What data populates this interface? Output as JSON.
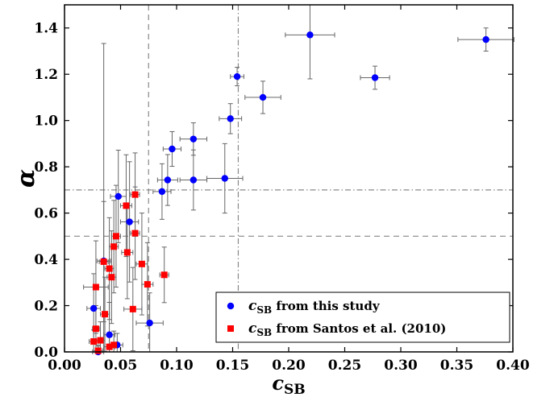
{
  "chart_data": {
    "type": "scatter",
    "title": "",
    "xlabel": "c",
    "xlabel_sub": "SB",
    "ylabel": "α",
    "xlim": [
      0.0,
      0.4
    ],
    "ylim": [
      0.0,
      1.5
    ],
    "xticks": [
      0.0,
      0.05,
      0.1,
      0.15,
      0.2,
      0.25,
      0.3,
      0.35,
      0.4
    ],
    "xtick_labels": [
      "0.00",
      "0.05",
      "0.10",
      "0.15",
      "0.20",
      "0.25",
      "0.30",
      "0.35",
      "0.40"
    ],
    "yticks": [
      0.0,
      0.2,
      0.4,
      0.6,
      0.8,
      1.0,
      1.2,
      1.4
    ],
    "ytick_labels": [
      "0.0",
      "0.2",
      "0.4",
      "0.6",
      "0.8",
      "1.0",
      "1.2",
      "1.4"
    ],
    "grid": false,
    "legend_position": "bottom-right",
    "reference_lines": {
      "vertical": [
        {
          "x": 0.075,
          "style": "dashed"
        },
        {
          "x": 0.155,
          "style": "dashdot"
        }
      ],
      "horizontal": [
        {
          "y": 0.5,
          "style": "dashed"
        },
        {
          "y": 0.7,
          "style": "dashdot"
        }
      ]
    },
    "series": [
      {
        "name_main": "c",
        "name_sub": "SB",
        "name_rest": " from this study",
        "color": "#0000ff",
        "marker": "circle",
        "points": [
          {
            "x": 0.376,
            "y": 1.35,
            "xerr": 0.025,
            "yerr": 0.05
          },
          {
            "x": 0.219,
            "y": 1.37,
            "xerr": 0.022,
            "yerr": 0.19
          },
          {
            "x": 0.277,
            "y": 1.185,
            "xerr": 0.013,
            "yerr": 0.05
          },
          {
            "x": 0.154,
            "y": 1.19,
            "xerr": 0.006,
            "yerr": 0.04
          },
          {
            "x": 0.177,
            "y": 1.1,
            "xerr": 0.016,
            "yerr": 0.07
          },
          {
            "x": 0.148,
            "y": 1.008,
            "xerr": 0.01,
            "yerr": 0.065
          },
          {
            "x": 0.115,
            "y": 0.92,
            "xerr": 0.012,
            "yerr": 0.07
          },
          {
            "x": 0.096,
            "y": 0.877,
            "xerr": 0.008,
            "yerr": 0.075
          },
          {
            "x": 0.143,
            "y": 0.75,
            "xerr": 0.016,
            "yerr": 0.15
          },
          {
            "x": 0.115,
            "y": 0.743,
            "xerr": 0.012,
            "yerr": 0.13
          },
          {
            "x": 0.092,
            "y": 0.743,
            "xerr": 0.009,
            "yerr": 0.11
          },
          {
            "x": 0.087,
            "y": 0.693,
            "xerr": 0.008,
            "yerr": 0.12
          },
          {
            "x": 0.048,
            "y": 0.672,
            "xerr": 0.007,
            "yerr": 0.2
          },
          {
            "x": 0.058,
            "y": 0.562,
            "xerr": 0.008,
            "yerr": 0.26
          },
          {
            "x": 0.035,
            "y": 0.393,
            "xerr": 0.006,
            "yerr": 0.94
          },
          {
            "x": 0.026,
            "y": 0.188,
            "xerr": 0.006,
            "yerr": 0.15
          },
          {
            "x": 0.076,
            "y": 0.125,
            "xerr": 0.012,
            "yerr": 0.13
          },
          {
            "x": 0.04,
            "y": 0.074,
            "xerr": 0.005,
            "yerr": 0.14
          },
          {
            "x": 0.047,
            "y": 0.03,
            "xerr": 0.005,
            "yerr": 0.05
          },
          {
            "x": 0.03,
            "y": 0.0,
            "xerr": 0.005,
            "yerr": 0.03
          }
        ]
      },
      {
        "name_main": "c",
        "name_sub": "SB",
        "name_rest": " from Santos et al. (2010)",
        "color": "#ff0000",
        "marker": "square",
        "points": [
          {
            "x": 0.063,
            "y": 0.68,
            "xerr": 0.004,
            "yerr": 0.18
          },
          {
            "x": 0.055,
            "y": 0.632,
            "xerr": 0.005,
            "yerr": 0.22
          },
          {
            "x": 0.063,
            "y": 0.513,
            "xerr": 0.004,
            "yerr": 0.2
          },
          {
            "x": 0.046,
            "y": 0.5,
            "xerr": 0.004,
            "yerr": 0.22
          },
          {
            "x": 0.044,
            "y": 0.455,
            "xerr": 0.004,
            "yerr": 0.2
          },
          {
            "x": 0.056,
            "y": 0.43,
            "xerr": 0.005,
            "yerr": 0.2
          },
          {
            "x": 0.035,
            "y": 0.39,
            "xerr": 0.004,
            "yerr": 0.26
          },
          {
            "x": 0.069,
            "y": 0.38,
            "xerr": 0.005,
            "yerr": 0.22
          },
          {
            "x": 0.04,
            "y": 0.36,
            "xerr": 0.004,
            "yerr": 0.22
          },
          {
            "x": 0.042,
            "y": 0.323,
            "xerr": 0.004,
            "yerr": 0.2
          },
          {
            "x": 0.089,
            "y": 0.333,
            "xerr": 0.004,
            "yerr": 0.12
          },
          {
            "x": 0.074,
            "y": 0.292,
            "xerr": 0.005,
            "yerr": 0.18
          },
          {
            "x": 0.028,
            "y": 0.28,
            "xerr": 0.011,
            "yerr": 0.2
          },
          {
            "x": 0.061,
            "y": 0.185,
            "xerr": 0.008,
            "yerr": 0.18
          },
          {
            "x": 0.036,
            "y": 0.163,
            "xerr": 0.004,
            "yerr": 0.16
          },
          {
            "x": 0.028,
            "y": 0.1,
            "xerr": 0.003,
            "yerr": 0.1
          },
          {
            "x": 0.032,
            "y": 0.05,
            "xerr": 0.004,
            "yerr": 0.08
          },
          {
            "x": 0.044,
            "y": 0.03,
            "xerr": 0.004,
            "yerr": 0.06
          },
          {
            "x": 0.04,
            "y": 0.022,
            "xerr": 0.005,
            "yerr": 0.05
          },
          {
            "x": 0.026,
            "y": 0.045,
            "xerr": 0.004,
            "yerr": 0.05
          },
          {
            "x": 0.03,
            "y": 0.005,
            "xerr": 0.004,
            "yerr": 0.02
          }
        ]
      }
    ]
  }
}
